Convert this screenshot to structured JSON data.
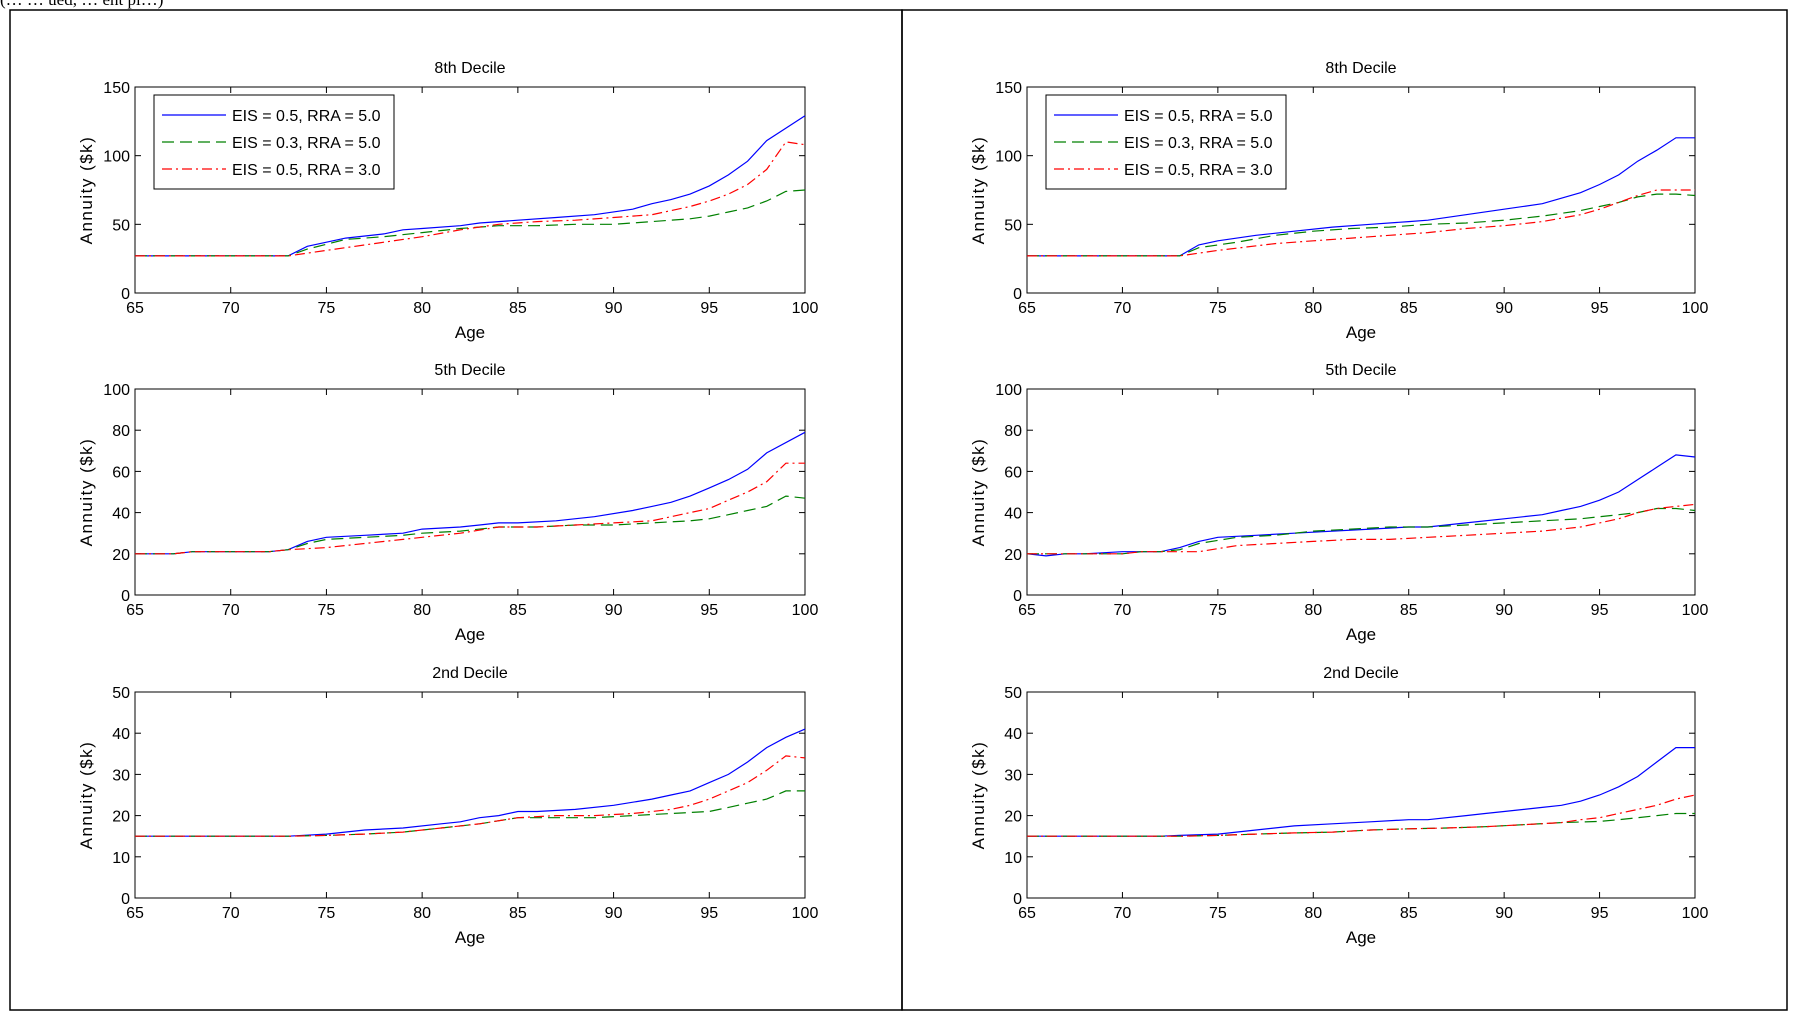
{
  "header": {
    "left_fragment": "(… … ued, … ent pl…)",
    "right_fragment": ""
  },
  "colors": {
    "series_1": "#0000ff",
    "series_2": "#008000",
    "series_3": "#ff0000"
  },
  "chart_data": [
    {
      "id": "L8",
      "type": "line",
      "title": "8th Decile",
      "xlabel": "Age",
      "ylabel": "Annuity ($k)",
      "xlim": [
        65,
        100
      ],
      "ylim": [
        0,
        150
      ],
      "xticks": [
        65,
        70,
        75,
        80,
        85,
        90,
        95,
        100
      ],
      "yticks": [
        0,
        50,
        100,
        150
      ],
      "legend": true,
      "legend_position": "top-left",
      "series": [
        {
          "name": "EIS = 0.5, RRA = 5.0",
          "x": [
            65,
            73,
            74,
            76,
            78,
            79,
            80,
            82,
            83,
            85,
            87,
            89,
            91,
            92,
            93,
            94,
            95,
            96,
            97,
            98,
            100
          ],
          "y": [
            27,
            27,
            34,
            40,
            43,
            46,
            47,
            49,
            51,
            53,
            55,
            57,
            61,
            65,
            68,
            72,
            78,
            86,
            96,
            111,
            129
          ]
        },
        {
          "name": "EIS = 0.3, RRA = 5.0",
          "x": [
            65,
            73,
            74,
            76,
            78,
            80,
            82,
            84,
            86,
            88,
            90,
            92,
            94,
            95,
            96,
            97,
            98,
            99,
            100
          ],
          "y": [
            27,
            27,
            32,
            39,
            41,
            44,
            47,
            49,
            49,
            50,
            50,
            52,
            54,
            56,
            59,
            62,
            67,
            74,
            75
          ]
        },
        {
          "name": "EIS = 0.5, RRA = 3.0",
          "x": [
            65,
            73,
            75,
            78,
            80,
            82,
            84,
            86,
            88,
            90,
            92,
            93,
            94,
            95,
            96,
            97,
            98,
            99,
            100
          ],
          "y": [
            27,
            27,
            31,
            37,
            41,
            46,
            50,
            52,
            53,
            55,
            57,
            60,
            63,
            67,
            72,
            79,
            90,
            110,
            108
          ]
        }
      ]
    },
    {
      "id": "R8",
      "type": "line",
      "title": "8th Decile",
      "xlabel": "Age",
      "ylabel": "Annuity ($k)",
      "xlim": [
        65,
        100
      ],
      "ylim": [
        0,
        150
      ],
      "xticks": [
        65,
        70,
        75,
        80,
        85,
        90,
        95,
        100
      ],
      "yticks": [
        0,
        50,
        100,
        150
      ],
      "legend": true,
      "legend_position": "top-left",
      "series": [
        {
          "name": "EIS = 0.5, RRA = 5.0",
          "x": [
            65,
            73,
            74,
            75,
            77,
            79,
            81,
            83,
            85,
            86,
            88,
            90,
            92,
            93,
            94,
            95,
            96,
            97,
            98,
            99,
            100
          ],
          "y": [
            27,
            27,
            35,
            38,
            42,
            45,
            48,
            50,
            52,
            53,
            57,
            61,
            65,
            69,
            73,
            79,
            86,
            96,
            104,
            113,
            113
          ]
        },
        {
          "name": "EIS = 0.3, RRA = 5.0",
          "x": [
            65,
            73,
            74,
            76,
            78,
            80,
            82,
            84,
            86,
            88,
            90,
            92,
            94,
            95,
            96,
            97,
            98,
            99,
            100
          ],
          "y": [
            27,
            27,
            33,
            37,
            42,
            45,
            47,
            48,
            50,
            51,
            53,
            56,
            60,
            63,
            66,
            70,
            72,
            72,
            71
          ]
        },
        {
          "name": "EIS = 0.5, RRA = 3.0",
          "x": [
            65,
            73,
            75,
            78,
            80,
            82,
            84,
            86,
            88,
            90,
            92,
            94,
            95,
            96,
            97,
            98,
            99,
            100
          ],
          "y": [
            27,
            27,
            31,
            36,
            38,
            40,
            42,
            44,
            47,
            49,
            52,
            57,
            61,
            66,
            71,
            75,
            75,
            75
          ]
        }
      ]
    },
    {
      "id": "L5",
      "type": "line",
      "title": "5th Decile",
      "xlabel": "Age",
      "ylabel": "Annuity ($k)",
      "xlim": [
        65,
        100
      ],
      "ylim": [
        0,
        100
      ],
      "xticks": [
        65,
        70,
        75,
        80,
        85,
        90,
        95,
        100
      ],
      "yticks": [
        0,
        20,
        40,
        60,
        80,
        100
      ],
      "legend": false,
      "series": [
        {
          "name": "EIS = 0.5, RRA = 5.0",
          "x": [
            65,
            67,
            68,
            70,
            71,
            72,
            73,
            74,
            75,
            77,
            79,
            80,
            82,
            83,
            84,
            85,
            87,
            89,
            91,
            92,
            93,
            94,
            95,
            96,
            97,
            98,
            100
          ],
          "y": [
            20,
            20,
            21,
            21,
            21,
            21,
            22,
            26,
            28,
            29,
            30,
            32,
            33,
            34,
            35,
            35,
            36,
            38,
            41,
            43,
            45,
            48,
            52,
            56,
            61,
            69,
            79
          ]
        },
        {
          "name": "EIS = 0.3, RRA = 5.0",
          "x": [
            65,
            67,
            68,
            70,
            71,
            72,
            73,
            74,
            75,
            77,
            79,
            80,
            82,
            83,
            84,
            86,
            88,
            90,
            92,
            94,
            95,
            96,
            97,
            98,
            99,
            100
          ],
          "y": [
            20,
            20,
            21,
            21,
            21,
            21,
            22,
            25,
            27,
            28,
            29,
            30,
            31,
            32,
            33,
            33,
            34,
            34,
            35,
            36,
            37,
            39,
            41,
            43,
            48,
            47
          ]
        },
        {
          "name": "EIS = 0.5, RRA = 3.0",
          "x": [
            65,
            67,
            68,
            70,
            71,
            72,
            73,
            75,
            77,
            79,
            80,
            82,
            84,
            86,
            88,
            90,
            92,
            93,
            94,
            95,
            96,
            97,
            98,
            99,
            100
          ],
          "y": [
            20,
            20,
            21,
            21,
            21,
            21,
            22,
            23,
            25,
            27,
            28,
            30,
            33,
            33,
            34,
            35,
            36,
            38,
            40,
            42,
            46,
            50,
            55,
            64,
            64
          ]
        }
      ]
    },
    {
      "id": "R5",
      "type": "line",
      "title": "5th Decile",
      "xlabel": "Age",
      "ylabel": "Annuity ($k)",
      "xlim": [
        65,
        100
      ],
      "ylim": [
        0,
        100
      ],
      "xticks": [
        65,
        70,
        75,
        80,
        85,
        90,
        95,
        100
      ],
      "yticks": [
        0,
        20,
        40,
        60,
        80,
        100
      ],
      "legend": false,
      "series": [
        {
          "name": "EIS = 0.5, RRA = 5.0",
          "x": [
            65,
            66,
            67,
            68,
            70,
            71,
            72,
            73,
            74,
            75,
            77,
            79,
            81,
            83,
            85,
            86,
            88,
            90,
            92,
            93,
            94,
            95,
            96,
            97,
            98,
            99,
            100
          ],
          "y": [
            20,
            19,
            20,
            20,
            21,
            21,
            21,
            23,
            26,
            28,
            29,
            30,
            31,
            32,
            33,
            33,
            35,
            37,
            39,
            41,
            43,
            46,
            50,
            56,
            62,
            68,
            67
          ]
        },
        {
          "name": "EIS = 0.3, RRA = 5.0",
          "x": [
            65,
            67,
            68,
            70,
            71,
            72,
            73,
            74,
            76,
            78,
            80,
            82,
            84,
            86,
            88,
            90,
            92,
            94,
            95,
            96,
            97,
            98,
            99,
            100
          ],
          "y": [
            20,
            20,
            20,
            20,
            21,
            21,
            22,
            25,
            28,
            29,
            31,
            32,
            33,
            33,
            34,
            35,
            36,
            37,
            38,
            39,
            40,
            42,
            42,
            41
          ]
        },
        {
          "name": "EIS = 0.5, RRA = 3.0",
          "x": [
            65,
            67,
            68,
            70,
            71,
            72,
            73,
            74,
            76,
            78,
            80,
            82,
            84,
            86,
            88,
            90,
            92,
            94,
            95,
            96,
            97,
            98,
            99,
            100
          ],
          "y": [
            20,
            20,
            20,
            20,
            21,
            21,
            21,
            21,
            24,
            25,
            26,
            27,
            27,
            28,
            29,
            30,
            31,
            33,
            35,
            37,
            40,
            42,
            43,
            44
          ]
        }
      ]
    },
    {
      "id": "L2",
      "type": "line",
      "title": "2nd Decile",
      "xlabel": "Age",
      "ylabel": "Annuity ($k)",
      "xlim": [
        65,
        100
      ],
      "ylim": [
        0,
        50
      ],
      "xticks": [
        65,
        70,
        75,
        80,
        85,
        90,
        95,
        100
      ],
      "yticks": [
        0,
        10,
        20,
        30,
        40,
        50
      ],
      "legend": false,
      "series": [
        {
          "name": "EIS = 0.5, RRA = 5.0",
          "x": [
            65,
            72,
            73,
            75,
            77,
            79,
            81,
            82,
            83,
            84,
            85,
            86,
            88,
            90,
            92,
            93,
            94,
            95,
            96,
            97,
            98,
            99,
            100
          ],
          "y": [
            15,
            15,
            15,
            15.5,
            16.5,
            17,
            18,
            18.5,
            19.5,
            20,
            21,
            21,
            21.5,
            22.5,
            24,
            25,
            26,
            28,
            30,
            33,
            36.5,
            39,
            41
          ]
        },
        {
          "name": "EIS = 0.3, RRA = 5.0",
          "x": [
            65,
            72,
            73,
            75,
            77,
            79,
            81,
            83,
            85,
            87,
            89,
            91,
            93,
            95,
            96,
            97,
            98,
            99,
            100
          ],
          "y": [
            15,
            15,
            15,
            15.2,
            15.5,
            16,
            17,
            18,
            19.5,
            19.5,
            19.5,
            20,
            20.5,
            21,
            22,
            23,
            24,
            26,
            26
          ]
        },
        {
          "name": "EIS = 0.5, RRA = 3.0",
          "x": [
            65,
            72,
            73,
            75,
            77,
            79,
            81,
            83,
            85,
            87,
            89,
            91,
            92,
            93,
            94,
            95,
            96,
            97,
            98,
            99,
            100
          ],
          "y": [
            15,
            15,
            15,
            15.2,
            15.5,
            16,
            17,
            18,
            19.5,
            20,
            20,
            20.5,
            21,
            21.5,
            22.5,
            24,
            26,
            28,
            31,
            34.5,
            34
          ]
        }
      ]
    },
    {
      "id": "R2",
      "type": "line",
      "title": "2nd Decile",
      "xlabel": "Age",
      "ylabel": "Annuity ($k)",
      "xlim": [
        65,
        100
      ],
      "ylim": [
        0,
        50
      ],
      "xticks": [
        65,
        70,
        75,
        80,
        85,
        90,
        95,
        100
      ],
      "yticks": [
        0,
        10,
        20,
        30,
        40,
        50
      ],
      "legend": false,
      "series": [
        {
          "name": "EIS = 0.5, RRA = 5.0",
          "x": [
            65,
            72,
            73,
            75,
            77,
            79,
            81,
            83,
            85,
            86,
            88,
            89,
            90,
            92,
            93,
            94,
            95,
            96,
            97,
            98,
            99,
            100
          ],
          "y": [
            15,
            15,
            15.2,
            15.5,
            16.5,
            17.5,
            18,
            18.5,
            19,
            19,
            20,
            20.5,
            21,
            22,
            22.5,
            23.5,
            25,
            27,
            29.5,
            33,
            36.5,
            36.5
          ]
        },
        {
          "name": "EIS = 0.3, RRA = 5.0",
          "x": [
            65,
            72,
            73,
            75,
            77,
            79,
            81,
            83,
            85,
            87,
            89,
            91,
            93,
            95,
            96,
            97,
            98,
            99,
            100
          ],
          "y": [
            15,
            15,
            15,
            15.2,
            15.5,
            15.8,
            16,
            16.5,
            16.8,
            17,
            17.3,
            17.8,
            18.3,
            18.6,
            19,
            19.5,
            20,
            20.5,
            20.5
          ]
        },
        {
          "name": "EIS = 0.5, RRA = 3.0",
          "x": [
            65,
            72,
            73,
            75,
            77,
            79,
            81,
            83,
            85,
            87,
            89,
            91,
            93,
            94,
            95,
            96,
            97,
            98,
            99,
            100
          ],
          "y": [
            15,
            15,
            15,
            15.2,
            15.5,
            15.8,
            16,
            16.5,
            16.8,
            17,
            17.3,
            17.8,
            18.3,
            19,
            19.5,
            20.5,
            21.5,
            22.5,
            24,
            25
          ]
        }
      ]
    }
  ]
}
